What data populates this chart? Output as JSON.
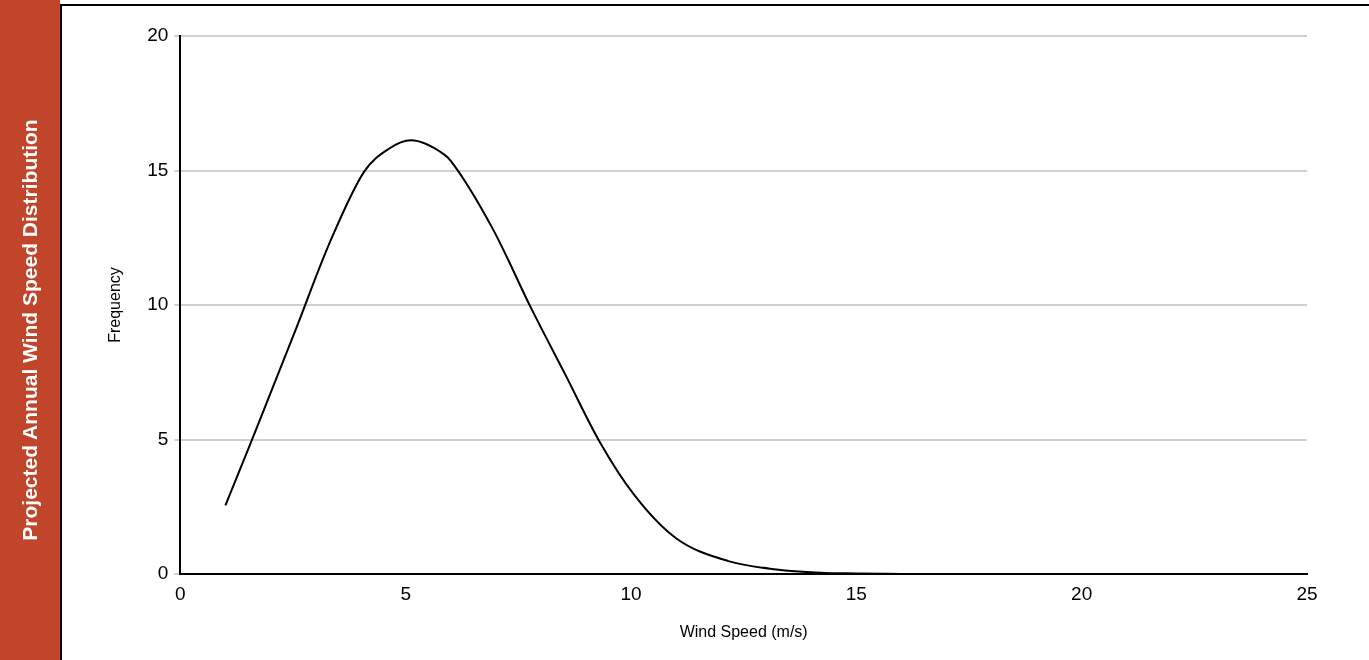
{
  "chart_data": {
    "type": "line",
    "title": "Projected Annual Wind Speed Distribution",
    "xlabel": "Wind Speed (m/s)",
    "ylabel": "Frequency",
    "x": [
      1.0,
      1.54,
      2.54,
      3.31,
      4.08,
      4.62,
      5.12,
      5.85,
      6.0,
      6.93,
      7.77,
      8.54,
      9.31,
      10.08,
      11.0,
      12.16,
      13.23,
      14.2,
      15.0,
      16.0
    ],
    "series": [
      {
        "color": "#000000",
        "values": [
          2.55,
          4.78,
          9.0,
          12.3,
          14.96,
          15.8,
          16.12,
          15.6,
          15.36,
          12.84,
          9.93,
          7.42,
          4.9,
          2.92,
          1.33,
          0.48,
          0.17,
          0.05,
          0.02,
          0
        ]
      }
    ],
    "xlim": [
      0,
      25
    ],
    "xticks": [
      0,
      5,
      10,
      15,
      20,
      25
    ],
    "ylim": [
      0,
      20
    ],
    "yticks": [
      0,
      5,
      10,
      15,
      20
    ],
    "grid": "y",
    "legend": false,
    "marker": "none",
    "line_style": "solid"
  }
}
